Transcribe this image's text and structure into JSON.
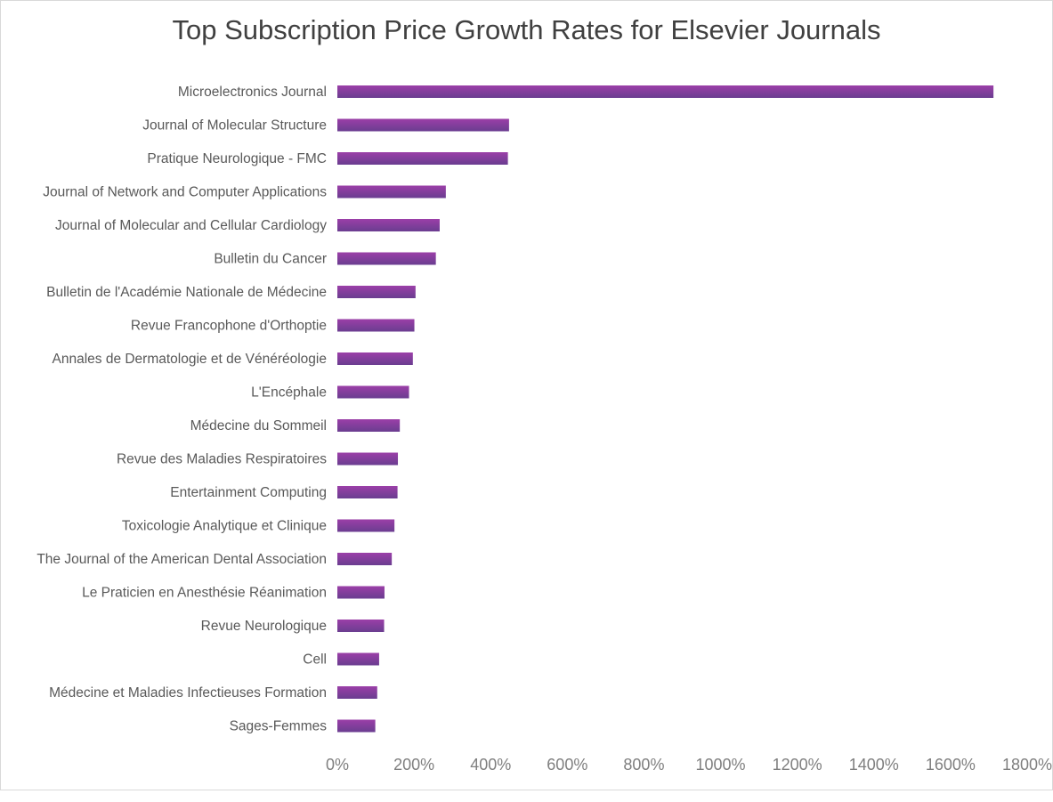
{
  "chart_data": {
    "type": "bar",
    "orientation": "horizontal",
    "title": "Top Subscription Price Growth Rates for Elsevier Journals",
    "xlabel": "",
    "ylabel": "",
    "xlim": [
      0,
      1800
    ],
    "value_unit": "%",
    "x_ticks": [
      "0%",
      "200%",
      "400%",
      "600%",
      "800%",
      "1000%",
      "1200%",
      "1400%",
      "1600%",
      "1800%"
    ],
    "grid": false,
    "legend": "none",
    "bar_color": "#7b3a96",
    "bar_highlight_color": "#9b3fa8",
    "categories": [
      "Microelectronics Journal",
      "Journal of Molecular Structure",
      "Pratique Neurologique - FMC",
      "Journal of Network and Computer Applications",
      "Journal of Molecular and Cellular Cardiology",
      "Bulletin du Cancer",
      "Bulletin de l'Académie Nationale de Médecine",
      "Revue Francophone d'Orthoptie",
      "Annales de Dermatologie et de Vénéréologie",
      "L'Encéphale",
      "Médecine du Sommeil",
      "Revue des Maladies Respiratoires",
      "Entertainment Computing",
      "Toxicologie Analytique et Clinique",
      "The Journal of the American Dental Association",
      "Le Praticien en Anesthésie Réanimation",
      "Revue Neurologique",
      "Cell",
      "Médecine et Maladies Infectieuses Formation",
      "Sages-Femmes"
    ],
    "values": [
      1712,
      448,
      445,
      283,
      267,
      257,
      204,
      201,
      197,
      187,
      163,
      158,
      157,
      149,
      142,
      123,
      122,
      109,
      104,
      99
    ]
  }
}
